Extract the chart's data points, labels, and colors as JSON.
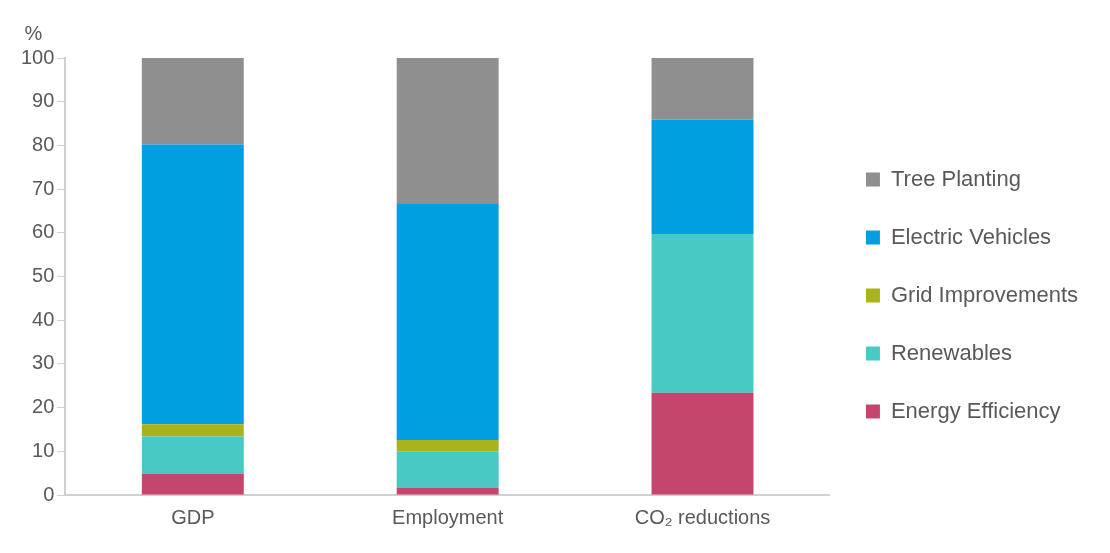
{
  "chart_data": {
    "type": "bar",
    "stacked": true,
    "ylabel": "%",
    "categories": [
      "GDP",
      "Employment",
      "CO₂ reductions"
    ],
    "series": [
      {
        "name": "Energy Efficiency",
        "color": "#c4466d",
        "values": [
          4.8,
          1.7,
          23.4
        ]
      },
      {
        "name": "Renewables",
        "color": "#48c9c4",
        "values": [
          8.6,
          8.3,
          36.3
        ]
      },
      {
        "name": "Grid Improvements",
        "color": "#a9b31c",
        "values": [
          2.8,
          2.6,
          0
        ]
      },
      {
        "name": "Electric Vehicles",
        "color": "#009fe0",
        "values": [
          64.0,
          54.0,
          26.2
        ]
      },
      {
        "name": "Tree Planting",
        "color": "#8f8f8f",
        "values": [
          19.8,
          33.4,
          14.1
        ]
      }
    ],
    "ylim": [
      0,
      100
    ],
    "yticks": [
      0,
      10,
      20,
      30,
      40,
      50,
      60,
      70,
      80,
      90,
      100
    ],
    "grid": false,
    "legend": "right"
  }
}
